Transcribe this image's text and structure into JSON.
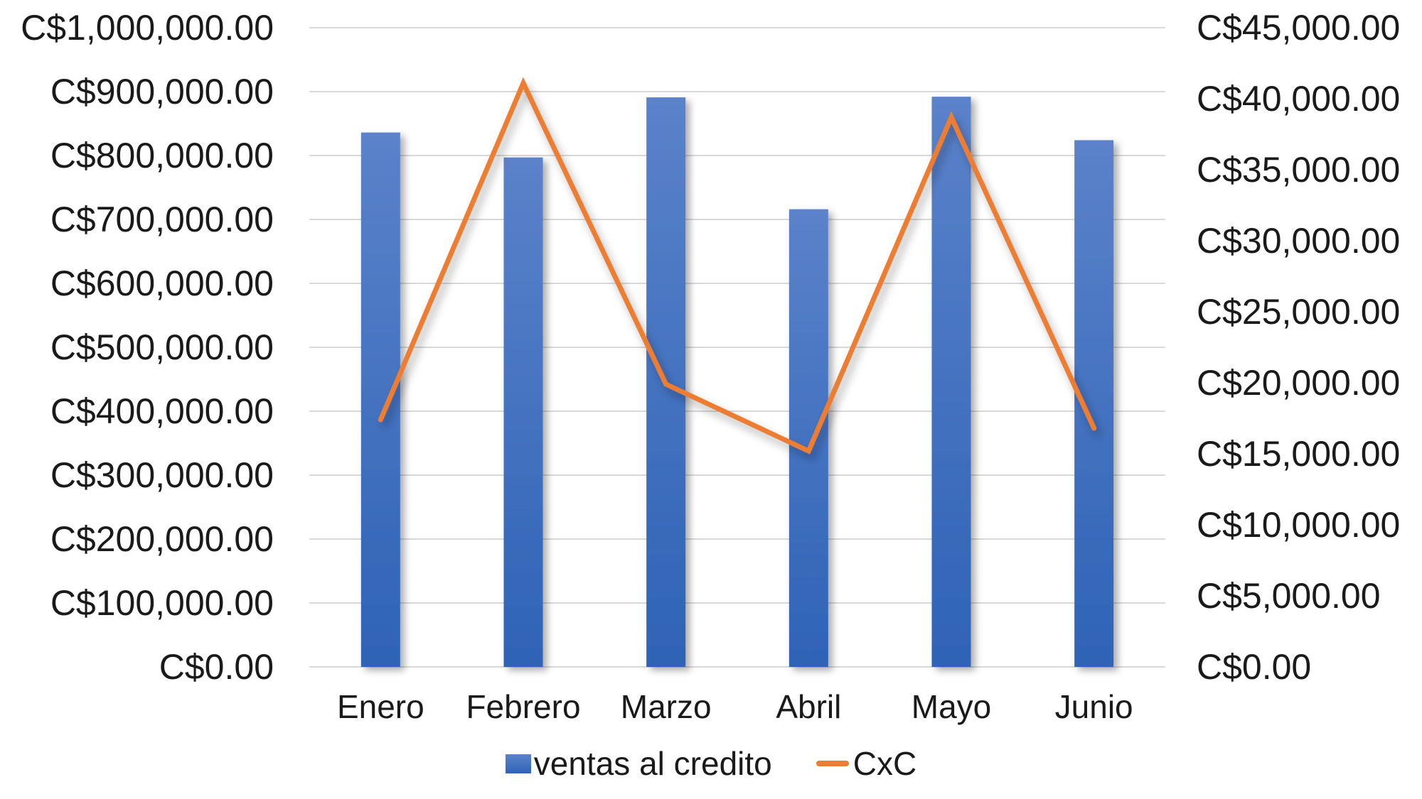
{
  "chart_data": {
    "type": "combo",
    "title": "",
    "categories": [
      "Enero",
      "Febrero",
      "Marzo",
      "Abril",
      "Mayo",
      "Junio"
    ],
    "series": [
      {
        "name": "ventas al credito",
        "type": "bar",
        "axis": "left",
        "values": [
          836000,
          797000,
          891000,
          716000,
          892000,
          824000
        ],
        "color_top": "#5b82ca",
        "color_bottom": "#2e63b6"
      },
      {
        "name": "CxC",
        "type": "line",
        "axis": "right",
        "values": [
          17400,
          41100,
          19900,
          15200,
          38700,
          16800
        ],
        "color": "#ed7d31"
      }
    ],
    "left_axis": {
      "min": 0,
      "max": 1000000,
      "step": 100000,
      "labels": [
        "C$1,000,000.00",
        "C$900,000.00",
        "C$800,000.00",
        "C$700,000.00",
        "C$600,000.00",
        "C$500,000.00",
        "C$400,000.00",
        "C$300,000.00",
        "C$200,000.00",
        "C$100,000.00",
        "C$0.00"
      ]
    },
    "right_axis": {
      "min": 0,
      "max": 45000,
      "step": 5000,
      "labels": [
        "C$45,000.00",
        "C$40,000.00",
        "C$35,000.00",
        "C$30,000.00",
        "C$25,000.00",
        "C$20,000.00",
        "C$15,000.00",
        "C$10,000.00",
        "C$5,000.00",
        "C$0.00"
      ]
    },
    "grid": true,
    "gridline_color": "#d9d9d9",
    "legend_position": "bottom"
  }
}
